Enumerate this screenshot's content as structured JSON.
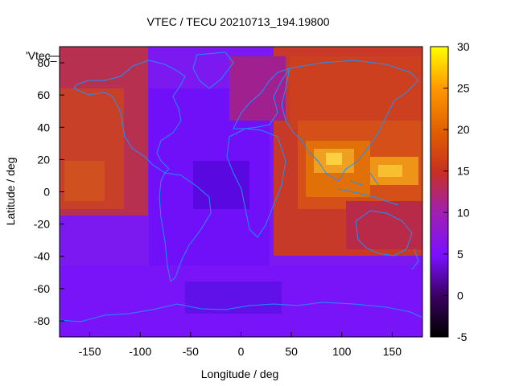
{
  "chart_data": {
    "type": "heatmap",
    "title": "VTEC / TECU 20210713_194.19800",
    "xlabel": "Longitude / deg",
    "ylabel": "Latitude / deg",
    "xlim": [
      -180,
      180
    ],
    "ylim": [
      -90,
      90
    ],
    "x_ticks": [
      -150,
      -100,
      -50,
      0,
      50,
      100,
      150
    ],
    "y_ticks": [
      -80,
      -60,
      -40,
      -20,
      0,
      20,
      40,
      60,
      80
    ],
    "colorbar": {
      "range": [
        -5,
        30
      ],
      "ticks": [
        -5,
        0,
        5,
        10,
        15,
        20,
        25,
        30
      ],
      "palette": [
        "#000000",
        "#400070",
        "#8000ff",
        "#c02060",
        "#e05010",
        "#ff9000",
        "#ffff00"
      ]
    },
    "legend_key": "'Vtec_",
    "overlay": "coastlines",
    "coastline_color": "#1e90ff",
    "grid": false
  }
}
